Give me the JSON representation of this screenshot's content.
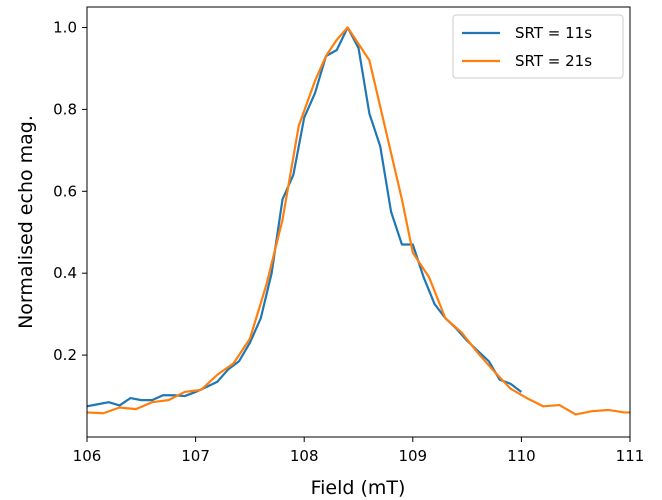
{
  "chart_data": {
    "type": "line",
    "xlabel": "Field (mT)",
    "ylabel": "Normalised echo mag.",
    "xlim": [
      106,
      111
    ],
    "ylim": [
      0.0,
      1.05
    ],
    "xticks": [
      "106",
      "107",
      "108",
      "109",
      "110",
      "111"
    ],
    "yticks": [
      "0.2",
      "0.4",
      "0.6",
      "0.8",
      "1.0"
    ],
    "legend_position": "top-right",
    "grid": false,
    "series": [
      {
        "name": "SRT = 11s",
        "color": "#1f77b4",
        "x": [
          106.0,
          106.1,
          106.2,
          106.3,
          106.4,
          106.5,
          106.6,
          106.7,
          106.8,
          106.9,
          107.0,
          107.1,
          107.2,
          107.3,
          107.4,
          107.5,
          107.6,
          107.7,
          107.8,
          107.9,
          108.0,
          108.1,
          108.2,
          108.3,
          108.4,
          108.5,
          108.6,
          108.7,
          108.8,
          108.9,
          109.0,
          109.1,
          109.2,
          109.3,
          109.4,
          109.5,
          109.6,
          109.7,
          109.8,
          109.9,
          110.0
        ],
        "values": [
          0.075,
          0.08,
          0.085,
          0.077,
          0.095,
          0.09,
          0.09,
          0.102,
          0.102,
          0.1,
          0.11,
          0.122,
          0.135,
          0.165,
          0.185,
          0.23,
          0.29,
          0.4,
          0.58,
          0.64,
          0.78,
          0.84,
          0.93,
          0.945,
          1.0,
          0.95,
          0.79,
          0.71,
          0.55,
          0.47,
          0.47,
          0.39,
          0.325,
          0.29,
          0.265,
          0.235,
          0.21,
          0.185,
          0.14,
          0.13,
          0.11
        ]
      },
      {
        "name": "SRT = 21s",
        "color": "#ff7f0e",
        "x": [
          106.0,
          106.15,
          106.3,
          106.45,
          106.6,
          106.75,
          106.9,
          107.05,
          107.2,
          107.35,
          107.5,
          107.65,
          107.8,
          107.95,
          108.1,
          108.2,
          108.3,
          108.4,
          108.5,
          108.6,
          108.75,
          108.9,
          109.0,
          109.15,
          109.3,
          109.45,
          109.6,
          109.75,
          109.9,
          110.05,
          110.2,
          110.35,
          110.5,
          110.65,
          110.8,
          110.95,
          111.0
        ],
        "values": [
          0.06,
          0.058,
          0.072,
          0.068,
          0.085,
          0.09,
          0.11,
          0.115,
          0.152,
          0.18,
          0.24,
          0.37,
          0.53,
          0.76,
          0.87,
          0.93,
          0.97,
          1.0,
          0.96,
          0.92,
          0.75,
          0.58,
          0.45,
          0.39,
          0.29,
          0.255,
          0.205,
          0.16,
          0.118,
          0.095,
          0.075,
          0.078,
          0.055,
          0.063,
          0.066,
          0.06,
          0.06
        ]
      }
    ]
  }
}
